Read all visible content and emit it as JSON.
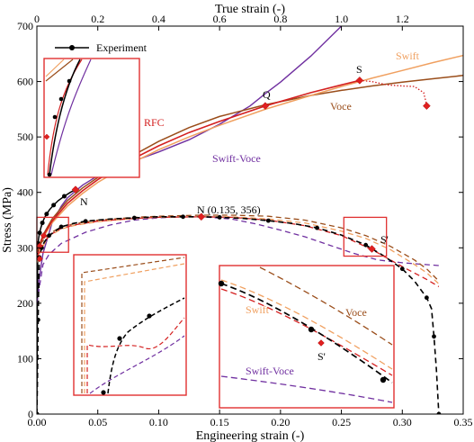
{
  "chart_data": {
    "type": "line",
    "ylabel": "Stress (MPa)",
    "xlabel": "Engineering strain (-)",
    "x2label": "True strain (-)",
    "xlim": [
      0,
      0.35
    ],
    "x2lim": [
      0,
      1.4
    ],
    "ylim": [
      0,
      700
    ],
    "xticks": [
      0,
      0.05,
      0.1,
      0.15,
      0.2,
      0.25,
      0.3,
      0.35
    ],
    "xticklabels": [
      "0.00",
      "0.05",
      "0.10",
      "0.15",
      "0.20",
      "0.25",
      "0.30",
      "0.35"
    ],
    "x2ticks": [
      0,
      0.2,
      0.4,
      0.6,
      0.8,
      1.0,
      1.2
    ],
    "x2ticklabels": [
      "0",
      "0.2",
      "0.4",
      "0.6",
      "0.8",
      "1.0",
      "1.2"
    ],
    "yticks": [
      0,
      100,
      200,
      300,
      400,
      500,
      600,
      700
    ],
    "yticklabels": [
      "0",
      "100",
      "200",
      "300",
      "400",
      "500",
      "600",
      "700"
    ],
    "colors": {
      "experiment": "#000000",
      "swift": "#f0a060",
      "voce": "#9a4d1a",
      "rfc": "#d42020",
      "swift_voce": "#7030a0",
      "box": "#e03030"
    },
    "legend": {
      "position": "top-left",
      "entry": "Experiment"
    },
    "labels": {
      "swift": "Swift",
      "voce": "Voce",
      "rfc": "RFC",
      "swift_voce": "Swift-Voce",
      "point_n": "N",
      "point_n_coords": "N (0.135, 356)",
      "point_q": "Q",
      "point_s": "S",
      "point_s_prime": "S'",
      "inset_swift": "Swift",
      "inset_voce": "Voce",
      "inset_swift_voce": "Swift-Voce",
      "inset_s_prime": "S'"
    },
    "true_curves": {
      "experiment": {
        "x": [
          0.0,
          0.0009,
          0.0018,
          0.0027,
          0.004,
          0.006,
          0.009,
          0.013,
          0.018,
          0.024,
          0.032,
          0.042,
          0.055,
          0.07,
          0.09,
          0.11,
          0.127
        ],
        "y": [
          0,
          110,
          230,
          290,
          308,
          318,
          327,
          336,
          345,
          353,
          361,
          369,
          377,
          385,
          393,
          400,
          405
        ]
      },
      "swift": {
        "x": [
          0.0,
          0.005,
          0.02,
          0.05,
          0.1,
          0.15,
          0.2,
          0.3,
          0.4,
          0.5,
          0.6,
          0.75,
          0.9,
          1.0,
          1.1,
          1.2,
          1.3,
          1.4
        ],
        "y": [
          270,
          292,
          318,
          345,
          375,
          398,
          418,
          450,
          477,
          500,
          521,
          550,
          575,
          591,
          606,
          620,
          634,
          647
        ]
      },
      "voce": {
        "x": [
          0.0,
          0.005,
          0.02,
          0.05,
          0.1,
          0.15,
          0.2,
          0.3,
          0.4,
          0.5,
          0.6,
          0.75,
          0.9,
          1.0,
          1.1,
          1.2,
          1.3,
          1.4
        ],
        "y": [
          290,
          300,
          323,
          352,
          385,
          408,
          427,
          462,
          492,
          517,
          537,
          558,
          575,
          584,
          592,
          599,
          605,
          611
        ]
      },
      "rfc": {
        "x": [
          0.0,
          0.005,
          0.02,
          0.05,
          0.1,
          0.15,
          0.2,
          0.3,
          0.4,
          0.5,
          0.6,
          0.75,
          0.9,
          1.0,
          1.06
        ],
        "y": [
          280,
          296,
          321,
          348,
          380,
          403,
          423,
          456,
          484,
          508,
          528,
          556,
          580,
          594,
          602
        ]
      },
      "rfc_dotted": {
        "x": [
          1.06,
          1.1,
          1.15,
          1.2,
          1.24,
          1.27,
          1.28
        ],
        "y": [
          602,
          600,
          594,
          592,
          591,
          580,
          558
        ]
      },
      "swift_voce": {
        "x": [
          0.0,
          0.005,
          0.02,
          0.05,
          0.08,
          0.1,
          0.15,
          0.2,
          0.3,
          0.4,
          0.5,
          0.6,
          0.7,
          0.75,
          0.8,
          0.9,
          1.0
        ],
        "y": [
          200,
          235,
          290,
          345,
          375,
          390,
          413,
          430,
          453,
          473,
          495,
          523,
          556,
          578,
          599,
          646,
          700
        ]
      }
    },
    "engineering_curves": {
      "experiment": {
        "x": [
          0.0,
          0.0005,
          0.001,
          0.0015,
          0.002,
          0.003,
          0.004,
          0.006,
          0.01,
          0.015,
          0.02,
          0.03,
          0.04,
          0.06,
          0.08,
          0.1,
          0.12,
          0.135,
          0.15,
          0.17,
          0.19,
          0.21,
          0.23,
          0.25,
          0.27,
          0.285,
          0.3,
          0.31,
          0.32,
          0.324,
          0.326,
          0.328,
          0.33
        ],
        "y": [
          0,
          65,
          170,
          230,
          283,
          292,
          300,
          310,
          322,
          330,
          338,
          344,
          348,
          352,
          354,
          356,
          356,
          356,
          355,
          353,
          349,
          344,
          336,
          323,
          305,
          285,
          262,
          240,
          210,
          190,
          140,
          80,
          0
        ]
      },
      "swift": {
        "x": [
          0.0,
          0.003,
          0.01,
          0.02,
          0.03,
          0.05,
          0.08,
          0.1,
          0.135,
          0.16,
          0.19,
          0.22,
          0.25,
          0.27,
          0.29,
          0.31,
          0.32,
          0.33
        ],
        "y": [
          273,
          296,
          321,
          334,
          340,
          347,
          353,
          355,
          356,
          356,
          352,
          345,
          330,
          317,
          297,
          270,
          255,
          235
        ]
      },
      "voce": {
        "x": [
          0.0,
          0.003,
          0.01,
          0.02,
          0.03,
          0.05,
          0.08,
          0.1,
          0.135,
          0.16,
          0.19,
          0.22,
          0.25,
          0.27,
          0.29,
          0.31,
          0.32,
          0.33
        ],
        "y": [
          292,
          308,
          325,
          338,
          343,
          350,
          355,
          357,
          359,
          359,
          357,
          350,
          336,
          322,
          303,
          278,
          262,
          240
        ]
      },
      "rfc": {
        "x": [
          0.0,
          0.003,
          0.01,
          0.02,
          0.03,
          0.05,
          0.08,
          0.1,
          0.135,
          0.16,
          0.19,
          0.22,
          0.25,
          0.275,
          0.3,
          0.32,
          0.33
        ],
        "y": [
          282,
          300,
          322,
          335,
          341,
          348,
          353,
          355,
          356,
          355,
          350,
          340,
          322,
          297,
          266,
          243,
          230
        ]
      },
      "swift_voce": {
        "x": [
          0.0,
          0.005,
          0.01,
          0.02,
          0.04,
          0.06,
          0.08,
          0.1,
          0.12,
          0.135,
          0.16,
          0.18,
          0.2,
          0.22,
          0.24,
          0.26,
          0.28,
          0.3,
          0.33
        ],
        "y": [
          200,
          270,
          288,
          308,
          328,
          341,
          350,
          354,
          356,
          356,
          352,
          343,
          332,
          320,
          305,
          290,
          278,
          273,
          268
        ]
      }
    },
    "points": {
      "N_true": {
        "x": 0.127,
        "y": 405
      },
      "Q_true": {
        "x": 0.75,
        "y": 556
      },
      "S_true": {
        "x": 1.06,
        "y": 602
      },
      "S_dot_true": {
        "x": 1.28,
        "y": 556
      },
      "RFC_origin_true": {
        "x": 0.0,
        "y": 280
      },
      "N_eng": {
        "x": 0.135,
        "y": 356
      },
      "S_prime_eng": {
        "x": 0.275,
        "y": 298
      },
      "eng_start": {
        "x": 0.0,
        "y": 303
      },
      "eng_start2": {
        "x": 0.0035,
        "y": 322
      }
    }
  }
}
